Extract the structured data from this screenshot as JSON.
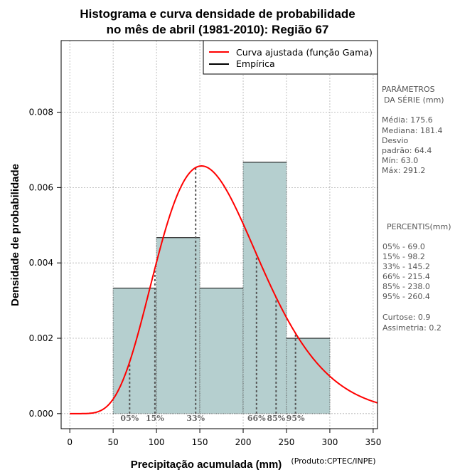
{
  "chart_data": {
    "type": "bar",
    "title_line1": "Histograma e curva densidade de probabilidade",
    "title_line2": "no mês de abril (1981-2010): Região 67",
    "xlabel": "Precipitação acumulada (mm)",
    "ylabel": "Densidade de probabilidade",
    "credit": "(Produto:CPTEC/INPE)",
    "xlim": [
      -10,
      355
    ],
    "ylim": [
      -0.0004,
      0.0099
    ],
    "x_ticks": [
      0,
      50,
      100,
      150,
      200,
      250,
      300,
      350
    ],
    "x_tick_labels": [
      "0",
      "50",
      "100",
      "150",
      "200",
      "250",
      "300",
      "350"
    ],
    "y_ticks": [
      0.0,
      0.002,
      0.004,
      0.006,
      0.008
    ],
    "y_tick_labels": [
      "0.000",
      "0.002",
      "0.004",
      "0.006",
      "0.008"
    ],
    "grid": true,
    "histogram": {
      "bin_edges": [
        50,
        100,
        150,
        200,
        250,
        300
      ],
      "densities": [
        0.00333,
        0.00467,
        0.00333,
        0.00667,
        0.002
      ],
      "fill_color": "#b5cfcf"
    },
    "gamma_fit": {
      "mean": 175.6,
      "sd": 64.4,
      "color": "#ff0000"
    },
    "percentile_lines": [
      {
        "label": "05%",
        "x": 69.0
      },
      {
        "label": "15%",
        "x": 98.2
      },
      {
        "label": "33%",
        "x": 145.2
      },
      {
        "label": "66%",
        "x": 215.4
      },
      {
        "label": "85%",
        "x": 238.0
      },
      {
        "label": "95%",
        "x": 260.4
      }
    ],
    "legend": {
      "position": "top-right",
      "entries": [
        {
          "label": "Curva ajustada (função Gama)",
          "color": "#ff0000"
        },
        {
          "label": "Empírica",
          "color": "#000000"
        }
      ]
    }
  },
  "side_panel": {
    "params_title_1": "PARÂMETROS",
    "params_title_2": "DA SÉRIE (mm)",
    "media": "Média:  175.6",
    "mediana": "Mediana:  181.4",
    "desvio_1": "Desvio",
    "desvio_2": "padrão:  64.4",
    "min": "Mín:  63.0",
    "max": "Máx:  291.2",
    "percentis_title": "PERCENTIS(mm)",
    "p05": "05% -  69.0",
    "p15": "15% -  98.2",
    "p33": "33% -  145.2",
    "p66": "66% -  215.4",
    "p85": "85% -  238.0",
    "p95": "95% -  260.4",
    "curtose": "Curtose:  0.9",
    "assimetria": "Assimetria:  0.2"
  }
}
